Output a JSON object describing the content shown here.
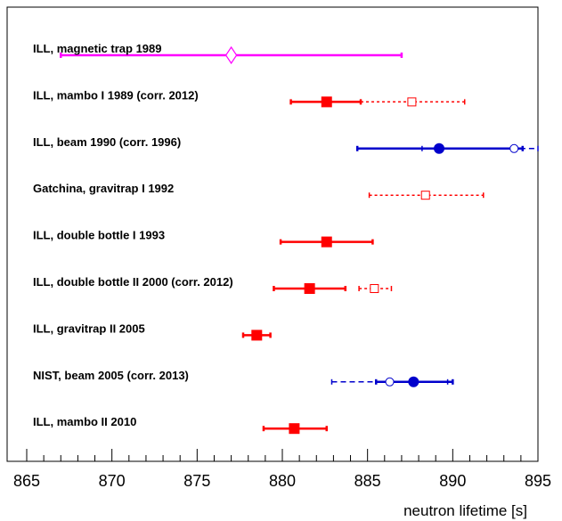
{
  "chart_data": {
    "type": "scatter",
    "title": "",
    "xlabel": "neutron lifetime [s]",
    "ylabel": "",
    "xlim": [
      865,
      895
    ],
    "x_ticks": [
      865,
      870,
      875,
      880,
      885,
      890,
      895
    ],
    "x_tick_labels": [
      "865",
      "870",
      "875",
      "880",
      "885",
      "890",
      "895"
    ],
    "grid": false,
    "legend": "none",
    "colors": {
      "red": "#ff0000",
      "blue": "#0000cc",
      "magenta": "#ff00ff",
      "axis": "#000000"
    },
    "experiments": [
      {
        "label": "ILL,  magnetic trap 1989",
        "points": [
          {
            "value": 877.0,
            "lo": 867.0,
            "hi": 887.0,
            "marker": "open-diamond",
            "color": "#ff00ff",
            "line": "solid"
          }
        ]
      },
      {
        "label": "ILL,  mambo I 1989 (corr. 2012)",
        "points": [
          {
            "value": 882.6,
            "lo": 880.5,
            "hi": 884.6,
            "marker": "filled-square",
            "color": "#ff0000",
            "line": "solid"
          },
          {
            "value": 887.6,
            "lo": 884.6,
            "hi": 890.7,
            "marker": "open-square",
            "color": "#ff0000",
            "line": "dotted"
          }
        ]
      },
      {
        "label": "ILL,  beam 1990 (corr. 1996)",
        "points": [
          {
            "value": 889.2,
            "lo": 884.4,
            "hi": 894.1,
            "marker": "filled-circle",
            "color": "#0000cc",
            "line": "solid"
          },
          {
            "value": 893.6,
            "lo": 888.2,
            "hi": 895.0,
            "marker": "open-circle",
            "color": "#0000cc",
            "line": "dashed"
          }
        ]
      },
      {
        "label": "Gatchina, gravitrap I 1992",
        "points": [
          {
            "value": 888.4,
            "lo": 885.1,
            "hi": 891.8,
            "marker": "open-square",
            "color": "#ff0000",
            "line": "dotted"
          }
        ]
      },
      {
        "label": "ILL,  double bottle I 1993",
        "points": [
          {
            "value": 882.6,
            "lo": 879.9,
            "hi": 885.3,
            "marker": "filled-square",
            "color": "#ff0000",
            "line": "solid"
          }
        ]
      },
      {
        "label": "ILL,  double bottle II 2000 (corr. 2012)",
        "points": [
          {
            "value": 881.6,
            "lo": 879.5,
            "hi": 883.7,
            "marker": "filled-square",
            "color": "#ff0000",
            "line": "solid"
          },
          {
            "value": 885.4,
            "lo": 884.5,
            "hi": 886.4,
            "marker": "open-square",
            "color": "#ff0000",
            "line": "dotted"
          }
        ]
      },
      {
        "label": "ILL, gravitrap II 2005",
        "points": [
          {
            "value": 878.5,
            "lo": 877.7,
            "hi": 879.3,
            "marker": "filled-square",
            "color": "#ff0000",
            "line": "solid"
          }
        ]
      },
      {
        "label": "NIST, beam 2005 (corr. 2013)",
        "points": [
          {
            "value": 887.7,
            "lo": 885.5,
            "hi": 890.0,
            "marker": "filled-circle",
            "color": "#0000cc",
            "line": "solid"
          },
          {
            "value": 886.3,
            "lo": 882.9,
            "hi": 889.7,
            "marker": "open-circle",
            "color": "#0000cc",
            "line": "dashed"
          }
        ]
      },
      {
        "label": "ILL, mambo II 2010",
        "points": [
          {
            "value": 880.7,
            "lo": 878.9,
            "hi": 882.6,
            "marker": "filled-square",
            "color": "#ff0000",
            "line": "solid"
          }
        ]
      }
    ]
  }
}
